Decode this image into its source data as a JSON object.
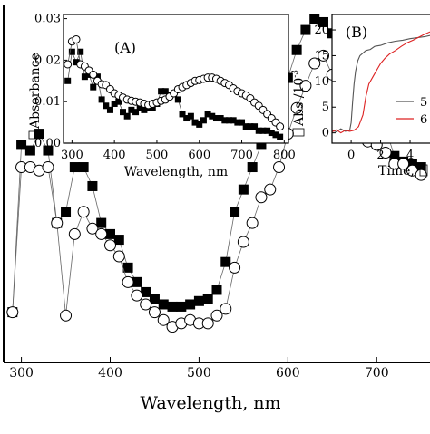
{
  "chart_data": [
    {
      "type": "scatter",
      "xlabel": "Wavelength, nm",
      "ylabel": "",
      "xlim": [
        280,
        760
      ],
      "ylim": [
        0.0,
        0.032
      ],
      "xticks": [
        300,
        400,
        500,
        600,
        700
      ],
      "xtick_labels": [
        "300",
        "400",
        "500",
        "600",
        "700"
      ],
      "line_color": "#666666",
      "series": [
        {
          "marker": "filled-square",
          "color": "#000000",
          "x": [
            290,
            300,
            310,
            320,
            330,
            340,
            350,
            360,
            370,
            380,
            390,
            400,
            410,
            420,
            430,
            440,
            450,
            460,
            470,
            480,
            490,
            500,
            510,
            520,
            530,
            540,
            550,
            560,
            570,
            580,
            590,
            600,
            610,
            620,
            630,
            640,
            650,
            660,
            670,
            680,
            690,
            700,
            710,
            720,
            730,
            740,
            750
          ],
          "y": [
            0.0045,
            0.0195,
            0.019,
            0.0205,
            0.019,
            0.0125,
            0.0135,
            0.0175,
            0.0175,
            0.0158,
            0.0125,
            0.0115,
            0.011,
            0.0085,
            0.0072,
            0.0063,
            0.0057,
            0.0052,
            0.005,
            0.005,
            0.0052,
            0.0055,
            0.0057,
            0.0065,
            0.009,
            0.0135,
            0.0155,
            0.0175,
            0.0195,
            0.0215,
            0.0235,
            0.0255,
            0.028,
            0.0298,
            0.0308,
            0.0305,
            0.0295,
            0.0285,
            0.0285,
            0.0275,
            0.0265,
            0.0245,
            0.021,
            0.0185,
            0.018,
            0.0178,
            0.0175
          ]
        },
        {
          "marker": "open-circle",
          "color": "#000000",
          "x": [
            290,
            300,
            310,
            320,
            330,
            340,
            350,
            360,
            370,
            380,
            390,
            400,
            410,
            420,
            430,
            440,
            450,
            460,
            470,
            480,
            490,
            500,
            510,
            520,
            530,
            540,
            550,
            560,
            570,
            580,
            590,
            600,
            610,
            620,
            630,
            640,
            650,
            660,
            670,
            680,
            690,
            700,
            710,
            720,
            730,
            740,
            750
          ],
          "y": [
            0.0045,
            0.0175,
            0.0175,
            0.0172,
            0.0175,
            0.0125,
            0.0042,
            0.0115,
            0.0135,
            0.012,
            0.0115,
            0.0105,
            0.0095,
            0.0072,
            0.006,
            0.0052,
            0.0045,
            0.0038,
            0.0032,
            0.0035,
            0.0038,
            0.0035,
            0.0035,
            0.0042,
            0.0048,
            0.0085,
            0.0108,
            0.0125,
            0.0148,
            0.0155,
            0.0175,
            0.0205,
            0.0228,
            0.0248,
            0.0268,
            0.0275,
            0.0258,
            0.0242,
            0.022,
            0.0205,
            0.0198,
            0.0195,
            0.0188,
            0.0178,
            0.0178,
            0.0172,
            0.0168
          ]
        }
      ]
    },
    {
      "type": "scatter",
      "panel_label": "(A)",
      "xlabel": "Wavelength, nm",
      "ylabel": "Absorbance",
      "xlim": [
        280,
        810
      ],
      "ylim": [
        0.0,
        0.031
      ],
      "xticks": [
        300,
        400,
        500,
        600,
        700,
        800
      ],
      "xtick_labels": [
        "300",
        "400",
        "500",
        "600",
        "700",
        "800"
      ],
      "yticks": [
        0.0,
        0.01,
        0.02,
        0.03
      ],
      "ytick_labels": [
        "0.00",
        "0.01",
        "0.02",
        "0.03"
      ],
      "series": [
        {
          "marker": "filled-square",
          "color": "#000000",
          "x": [
            290,
            300,
            310,
            320,
            330,
            340,
            350,
            360,
            370,
            380,
            390,
            400,
            410,
            420,
            430,
            440,
            450,
            460,
            470,
            480,
            490,
            500,
            510,
            520,
            530,
            540,
            550,
            560,
            570,
            580,
            590,
            600,
            610,
            620,
            630,
            640,
            650,
            660,
            670,
            680,
            690,
            700,
            710,
            720,
            730,
            740,
            750,
            760,
            770,
            780,
            790
          ],
          "y": [
            0.015,
            0.022,
            0.0195,
            0.022,
            0.016,
            0.0165,
            0.0135,
            0.016,
            0.0105,
            0.009,
            0.008,
            0.0095,
            0.01,
            0.0075,
            0.0065,
            0.008,
            0.0075,
            0.0085,
            0.008,
            0.0085,
            0.0085,
            0.0095,
            0.0125,
            0.0125,
            0.0115,
            0.012,
            0.0105,
            0.007,
            0.006,
            0.0065,
            0.005,
            0.0045,
            0.0055,
            0.007,
            0.0065,
            0.006,
            0.006,
            0.0055,
            0.0055,
            0.0055,
            0.005,
            0.005,
            0.004,
            0.004,
            0.004,
            0.003,
            0.003,
            0.003,
            0.0025,
            0.002,
            0.0015
          ]
        },
        {
          "marker": "open-circle",
          "color": "#000000",
          "x": [
            290,
            300,
            310,
            320,
            330,
            340,
            350,
            360,
            370,
            380,
            390,
            400,
            410,
            420,
            430,
            440,
            450,
            460,
            470,
            480,
            490,
            500,
            510,
            520,
            530,
            540,
            550,
            560,
            570,
            580,
            590,
            600,
            610,
            620,
            630,
            640,
            650,
            660,
            670,
            680,
            690,
            700,
            710,
            720,
            730,
            740,
            750,
            760,
            770,
            780,
            790
          ],
          "y": [
            0.019,
            0.0245,
            0.025,
            0.019,
            0.0185,
            0.0175,
            0.0165,
            0.015,
            0.0142,
            0.014,
            0.013,
            0.012,
            0.0115,
            0.011,
            0.0105,
            0.0102,
            0.01,
            0.0098,
            0.0095,
            0.0092,
            0.0095,
            0.0098,
            0.0102,
            0.0105,
            0.0112,
            0.012,
            0.013,
            0.0135,
            0.014,
            0.0145,
            0.015,
            0.0152,
            0.0155,
            0.0158,
            0.0158,
            0.0155,
            0.015,
            0.0145,
            0.014,
            0.0132,
            0.0125,
            0.012,
            0.0115,
            0.0108,
            0.0098,
            0.009,
            0.008,
            0.007,
            0.006,
            0.005,
            0.004
          ]
        }
      ]
    },
    {
      "type": "line",
      "panel_label": "(B)",
      "xlabel": "Time, ",
      "ylabel": "Abs /10",
      "ylabel_exponent": "-3",
      "xlim": [
        -1.3,
        5.6
      ],
      "ylim": [
        -2,
        23
      ],
      "xticks": [
        0,
        2,
        4
      ],
      "xtick_labels": [
        "0",
        "2",
        "4"
      ],
      "yticks": [
        0,
        5,
        10,
        15,
        20
      ],
      "ytick_labels": [
        "0",
        "5",
        "10",
        "15",
        "20"
      ],
      "series": [
        {
          "name": "5",
          "color": "#555555",
          "x": [
            -1.3,
            -1.0,
            -0.7,
            -0.4,
            -0.1,
            0.0,
            0.1,
            0.2,
            0.3,
            0.45,
            0.6,
            0.8,
            1.0,
            1.3,
            1.6,
            2.0,
            2.5,
            3.0,
            3.5,
            4.0,
            4.5,
            5.0,
            5.5
          ],
          "y": [
            0.5,
            0.2,
            0.8,
            0.3,
            0.5,
            2.0,
            6.0,
            9.5,
            12.0,
            14.0,
            15.0,
            15.5,
            16.0,
            16.2,
            16.8,
            17.0,
            17.5,
            17.8,
            18.0,
            18.3,
            18.5,
            18.7,
            19.0
          ]
        },
        {
          "name": "6",
          "color": "#dd2222",
          "x": [
            -1.3,
            -1.0,
            -0.7,
            -0.4,
            -0.1,
            0.2,
            0.5,
            0.8,
            1.0,
            1.2,
            1.5,
            1.8,
            2.0,
            2.3,
            2.6,
            3.0,
            3.4,
            3.8,
            4.2,
            4.6,
            5.0,
            5.5
          ],
          "y": [
            0.2,
            0.6,
            0.0,
            0.5,
            0.3,
            0.5,
            1.2,
            3.5,
            7.0,
            9.5,
            11.0,
            12.5,
            13.5,
            14.5,
            15.3,
            16.0,
            16.8,
            17.5,
            18.0,
            18.6,
            19.2,
            19.8
          ]
        }
      ]
    }
  ]
}
